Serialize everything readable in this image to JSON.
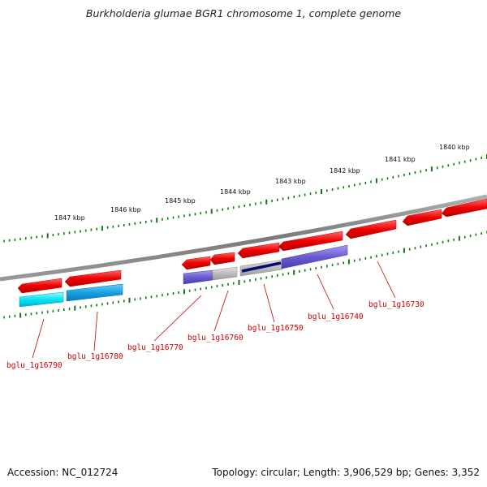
{
  "title": "Burkholderia glumae BGR1 chromosome 1, complete genome",
  "footer": {
    "accession": "Accession: NC_012724",
    "topology": "Topology: circular; Length: 3,906,529 bp; Genes: 3,352"
  },
  "scale_labels": [
    "1847 kbp",
    "1846 kbp",
    "1845 kbp",
    "1844 kbp",
    "1843 kbp",
    "1842 kbp",
    "1841 kbp",
    "1840 kbp"
  ],
  "gene_labels": [
    "bglu_1g16790",
    "bglu_1g16780",
    "bglu_1g16770",
    "bglu_1g16760",
    "bglu_1g16750",
    "bglu_1g16740",
    "bglu_1g16730"
  ],
  "colors": {
    "forward_gene": "#ee0000",
    "reverse_cyan": "#00e0f0",
    "reverse_blue": "#1aa0e0",
    "reverse_purple": "#6a5cd0",
    "reverse_gray": "#b8b8b8",
    "backbone": "#808080",
    "ticks": "#117711",
    "labels": "#cc0000"
  }
}
